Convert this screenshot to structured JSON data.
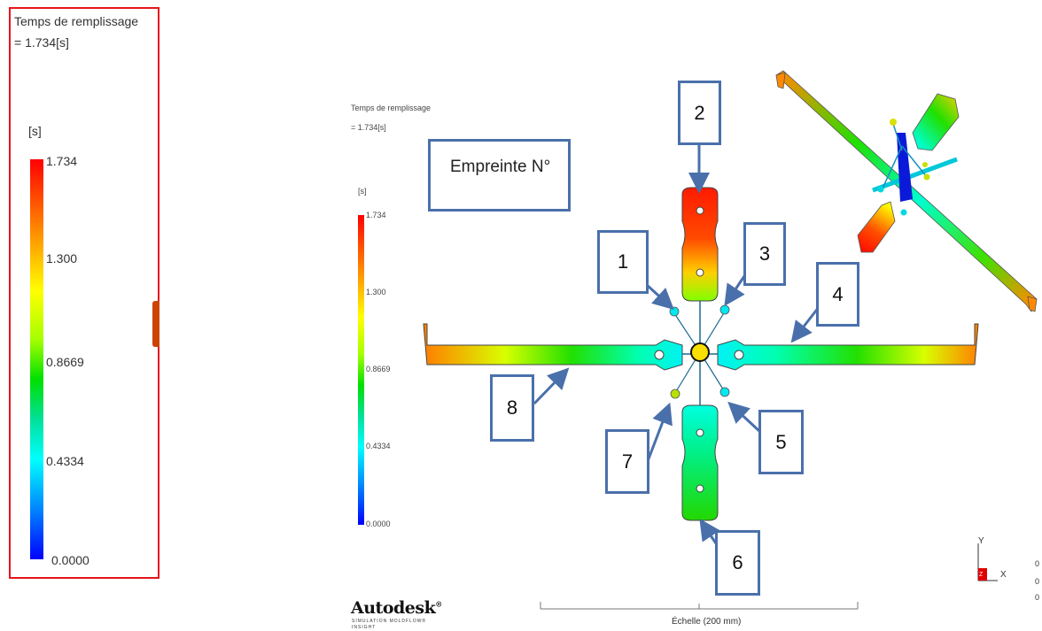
{
  "legend": {
    "title": "Temps de remplissage",
    "value": "= 1.734[s]",
    "unit": "[s]",
    "ticks": [
      "1.734",
      "1.300",
      "0.8669",
      "0.4334",
      "0.0000"
    ]
  },
  "legend_small": {
    "title": "Temps de remplissage",
    "value": "= 1.734[s]",
    "unit": "[s]",
    "ticks": [
      "1.734",
      "1.300",
      "0.8669",
      "0.4334",
      "0.0000"
    ]
  },
  "empreinte_label": "Empreinte N°",
  "callouts": [
    "1",
    "2",
    "3",
    "4",
    "5",
    "6",
    "7",
    "8"
  ],
  "logo": {
    "name": "Autodesk",
    "mark": "®",
    "line1": "SIMULATION MOLDFLOW®",
    "line2": "INSIGHT"
  },
  "scale_label": "Échelle (200 mm)",
  "axes": {
    "y": "Y",
    "x": "X",
    "z": "Z"
  },
  "coords": [
    "0",
    "0",
    "0"
  ],
  "colors": {
    "frame": "#e8141b",
    "callout_border": "#4a70ab",
    "scale_max": "#ff0000",
    "scale_min": "#0000ff"
  }
}
